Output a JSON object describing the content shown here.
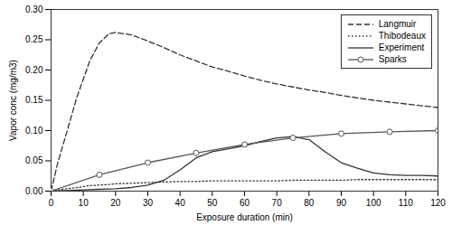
{
  "chart_data": {
    "type": "line",
    "title": "",
    "xlabel": "Exposure duration (min)",
    "ylabel": "Vapor conc (mg/m3)",
    "xlim": [
      0,
      120
    ],
    "ylim": [
      0.0,
      0.3
    ],
    "xticks": [
      0,
      10,
      20,
      30,
      40,
      50,
      60,
      70,
      80,
      90,
      100,
      110,
      120
    ],
    "yticks": [
      {
        "value": 0,
        "label": "0.00"
      },
      0.05,
      {
        "value": 0.1,
        "label": "0.10"
      },
      0.15,
      {
        "value": 0.2,
        "label": "0.20"
      },
      0.25,
      {
        "value": 0.3,
        "label": "0.30"
      }
    ],
    "grid": false,
    "legend": "upper right",
    "series": [
      {
        "name": "Langmuir",
        "color": "#333333",
        "line_style": "dashed",
        "x": [
          0,
          2,
          5,
          8,
          12,
          15,
          18,
          20,
          25,
          30,
          35,
          40,
          45,
          50,
          55,
          60,
          65,
          70,
          75,
          80,
          85,
          90,
          95,
          100,
          105,
          110,
          115,
          120
        ],
        "values": [
          0.0,
          0.045,
          0.1,
          0.155,
          0.215,
          0.245,
          0.26,
          0.262,
          0.258,
          0.248,
          0.237,
          0.225,
          0.215,
          0.205,
          0.198,
          0.19,
          0.183,
          0.177,
          0.172,
          0.167,
          0.163,
          0.158,
          0.154,
          0.15,
          0.147,
          0.144,
          0.141,
          0.138
        ]
      },
      {
        "name": "Thibodeaux",
        "color": "#333333",
        "line_style": "dotted",
        "x": [
          0,
          2,
          5,
          8,
          12,
          15,
          18,
          20,
          25,
          30,
          35,
          40,
          45,
          50,
          55,
          60,
          65,
          70,
          75,
          80,
          85,
          90,
          95,
          100,
          105,
          110,
          115,
          120
        ],
        "values": [
          0.0,
          0.002,
          0.004,
          0.006,
          0.009,
          0.01,
          0.011,
          0.012,
          0.013,
          0.014,
          0.015,
          0.016,
          0.016,
          0.017,
          0.017,
          0.017,
          0.017,
          0.017,
          0.018,
          0.018,
          0.018,
          0.018,
          0.019,
          0.019,
          0.019,
          0.019,
          0.019,
          0.019
        ]
      },
      {
        "name": "Experiment",
        "color": "#333333",
        "line_style": "solid",
        "x": [
          0,
          5,
          10,
          15,
          20,
          25,
          30,
          35,
          40,
          45,
          50,
          55,
          60,
          65,
          70,
          75,
          80,
          85,
          90,
          95,
          100,
          105,
          110,
          115,
          120
        ],
        "values": [
          0.0,
          0.001,
          0.002,
          0.003,
          0.004,
          0.006,
          0.01,
          0.018,
          0.035,
          0.055,
          0.065,
          0.07,
          0.075,
          0.082,
          0.088,
          0.09,
          0.085,
          0.065,
          0.047,
          0.038,
          0.03,
          0.027,
          0.026,
          0.026,
          0.025
        ]
      },
      {
        "name": "Sparks",
        "color": "#555555",
        "line_style": "solid",
        "marker": "circle",
        "x": [
          0,
          15,
          30,
          45,
          60,
          75,
          90,
          105,
          120
        ],
        "values": [
          0.0,
          0.027,
          0.047,
          0.063,
          0.077,
          0.088,
          0.095,
          0.098,
          0.1
        ]
      }
    ]
  }
}
